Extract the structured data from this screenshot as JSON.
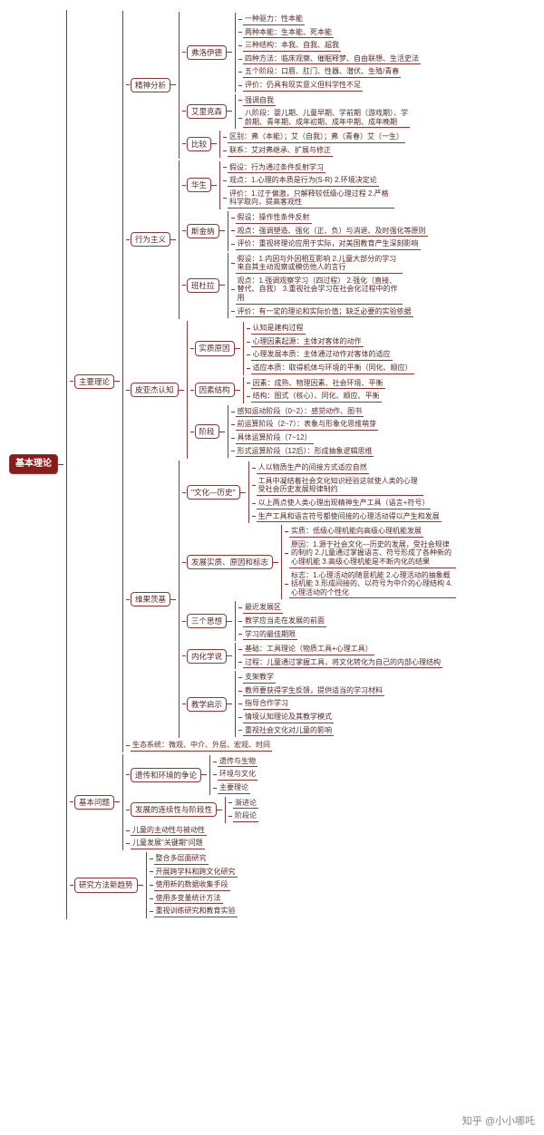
{
  "colors": {
    "border": "#8b3a3a",
    "rootBg": "#8b1a1a",
    "text": "#5a2828"
  },
  "watermark": "知乎 @小小哪吒",
  "root": "基本理论",
  "b1": "主要理论",
  "b1_1": "精神分析",
  "b1_1_1": "弗洛伊德",
  "b1_1_1_items": [
    "一种驱力：性本能",
    "两种本能：生本能、死本能",
    "三种结构：本我、自我、超我",
    "四种方法：临床观察、催眠释梦、自由联想、生活史法",
    "五个阶段：口唇、肛门、性器、潜伏、生殖/青春",
    "评价：仍具有现实意义但科学性不足"
  ],
  "b1_1_2": "艾里克森",
  "b1_1_2a": "强调自我",
  "b1_1_2b": "八阶段：婴儿期、儿童早期、学前期（游戏期）、学龄期、青年期、成年初期、成年中期、成年晚期",
  "b1_1_3": "比较",
  "b1_1_3a": "区别：弗（本能）；艾（自我）；弗（青春）艾（一生）",
  "b1_1_3b": "联系：艾对弗继承、扩展与修正",
  "b1_2": "行为主义",
  "b1_2_1": "华生",
  "b1_2_1a": "假设：行为通过条件反射学习",
  "b1_2_1b": "观点：1.心理的本质是行为(S-R) 2.环境决定论",
  "b1_2_1c": "评价：1.过于偏激，只解释较低级心理过程 2.严格科学取向，提高客观性",
  "b1_2_2": "斯金纳",
  "b1_2_2a": "假设：操作性条件反射",
  "b1_2_2b": "观点：强调塑造、强化（正、负）与消退、及时强化等原则",
  "b1_2_2c": "评价：重视将理论应用于实际，对美国教育产生深刻影响",
  "b1_2_3": "班杜拉",
  "b1_2_3a": "假设：1.内因与外因相互影响 2.儿童大部分的学习来自其主动观察或模仿他人的言行",
  "b1_2_3b": "观点：1.强调观察学习（四过程） 2.强化（直接、替代、自我） 3.重视社会学习在社会化过程中的作用",
  "b1_2_3c": "评价：有一定的理论和实际价值；缺乏必要的实验依据",
  "b1_3": "皮亚杰认知",
  "b1_3_1": "实质原因",
  "b1_3_1_items": [
    "认知是建构过程",
    "心理因素起源：主体对客体的动作",
    "心理发展本质：主体通过动作对客体的适应",
    "适应本质：取得机体与环境的平衡（同化、顺应）"
  ],
  "b1_3_2": "因素结构",
  "b1_3_2a": "因素：成熟、物理因素、社会环境、平衡",
  "b1_3_2b": "结构：图式（核心）、同化、顺应、平衡",
  "b1_3_3": "阶段",
  "b1_3_3_items": [
    "感知运动阶段（0~2）：感觉动作、图书",
    "前运算阶段（2~7）：表象与形象化思维萌芽",
    "具体运算阶段（7~12）",
    "形式运算阶段（12后）：形成抽象逻辑思维"
  ],
  "b1_4": "维果茨基",
  "b1_4_1": "\"文化—历史\"",
  "b1_4_1_items": [
    "人以物质生产的间接方式适应自然",
    "工具中凝结着社会文化知识经验这就使人类的心理受社会历史发展规律制约",
    "以上两点使人类心理出现精神生产工具（语言+符号）",
    "生产工具和语言符号都使间接的心理活动得以产生和发展"
  ],
  "b1_4_2": "发展实质、原因和标志",
  "b1_4_2a": "实质：低级心理机能向高级心理机能发展",
  "b1_4_2b": "原因：1.源于社会文化—历史的发展，受社会规律的制约 2.儿童通过掌握语言、符号形成了各种新的心理机能 3.高级心理机能是不断内化的结果",
  "b1_4_2c": "标志：1.心理活动的随意机能 2.心理活动的抽象概括机能 3.形成间接的、以符号为中介的心理结构 4.心理活动的个性化",
  "b1_4_3": "三个思想",
  "b1_4_3_items": [
    "最近发展区",
    "教学应当走在发展的前面",
    "学习的最佳期限"
  ],
  "b1_4_4": "内化学说",
  "b1_4_4a": "基础：工具理论（物质工具+心理工具）",
  "b1_4_4b": "过程：儿童通过掌握工具，将文化转化为自己的内部心理结构",
  "b1_4_5": "教学启示",
  "b1_4_5_items": [
    "支架教学",
    "教师要获得学生反馈，提供适当的学习材料",
    "指导合作学习",
    "情境认知理论及其教学模式",
    "重视社会文化对儿童的影响"
  ],
  "b1_5": "生态系统：微观、中介、外层、宏观、时间",
  "b2": "基本问题",
  "b2_1": "遗传和环境的争论",
  "b2_1_items": [
    "遗传与生物",
    "环境与文化",
    "主要理论"
  ],
  "b2_2": "发展的连续性与阶段性",
  "b2_2_items": [
    "渐进论",
    "阶段论"
  ],
  "b2_3": "儿童的主动性与被动性",
  "b2_4": "儿童发展\"关键期\"问题",
  "b3": "研究方法新趋势",
  "b3_items": [
    "整合多层面研究",
    "开展跨学科和跨文化研究",
    "使用新的数据收集手段",
    "使用多变量统计方法",
    "重视训练研究和教育实验"
  ]
}
